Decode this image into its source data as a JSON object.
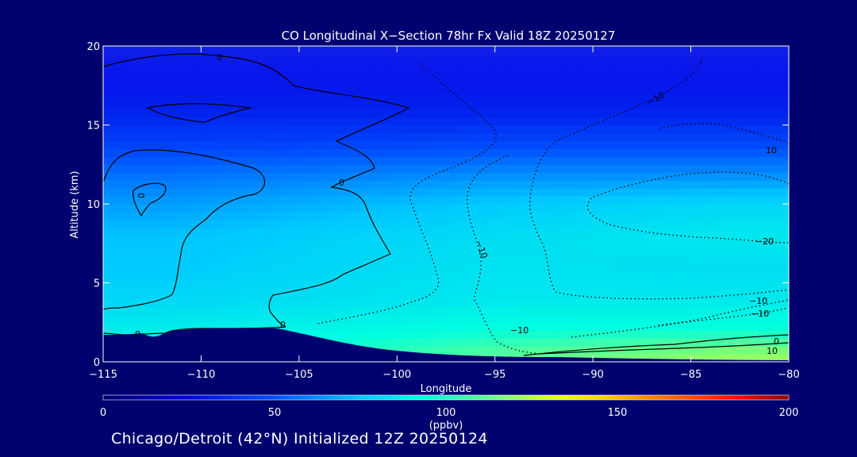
{
  "chart_data": {
    "type": "heatmap",
    "title": "CO Longitudinal X−Section 78hr  Fx Valid 18Z 20250127",
    "xlabel": "Longitude",
    "ylabel": "Altitude (km)",
    "xlim": [
      -115,
      -80
    ],
    "ylim": [
      0,
      20
    ],
    "xticks": [
      -115,
      -110,
      -105,
      -100,
      -95,
      -90,
      -85,
      -80
    ],
    "xtick_labels": [
      "−115",
      "−110",
      "−105",
      "−100",
      "−95",
      "−90",
      "−85",
      "−80"
    ],
    "yticks": [
      0,
      5,
      10,
      15,
      20
    ],
    "ytick_labels": [
      "0",
      "5",
      "10",
      "15",
      "20"
    ],
    "colorbar": {
      "label": "(ppbv)",
      "min": 0,
      "max": 200,
      "ticks": [
        "0",
        "50",
        "100",
        "150",
        "200"
      ],
      "colors": [
        "#000080",
        "#0000ff",
        "#0080ff",
        "#00ffff",
        "#80ff80",
        "#ffff00",
        "#ff8000",
        "#ff0000",
        "#800000"
      ]
    },
    "co_profile_ppbv": {
      "altitude_km": [
        0.5,
        2,
        4,
        6,
        8,
        10,
        12,
        14,
        16,
        18,
        20
      ],
      "west_-112": [
        null,
        88,
        80,
        76,
        74,
        66,
        56,
        44,
        34,
        26,
        20
      ],
      "central_-95": [
        110,
        95,
        86,
        84,
        82,
        76,
        62,
        46,
        34,
        26,
        20
      ],
      "east_-83": [
        120,
        96,
        86,
        82,
        86,
        80,
        62,
        46,
        34,
        26,
        20
      ]
    },
    "contour_labels": [
      "0",
      "0",
      "0",
      "0",
      "0",
      "−10",
      "−10",
      "−10",
      "−20",
      "−10",
      "10",
      "−10",
      "0",
      "10"
    ]
  },
  "footer": "Chicago/Detroit (42°N) Initialized 12Z 20250124"
}
